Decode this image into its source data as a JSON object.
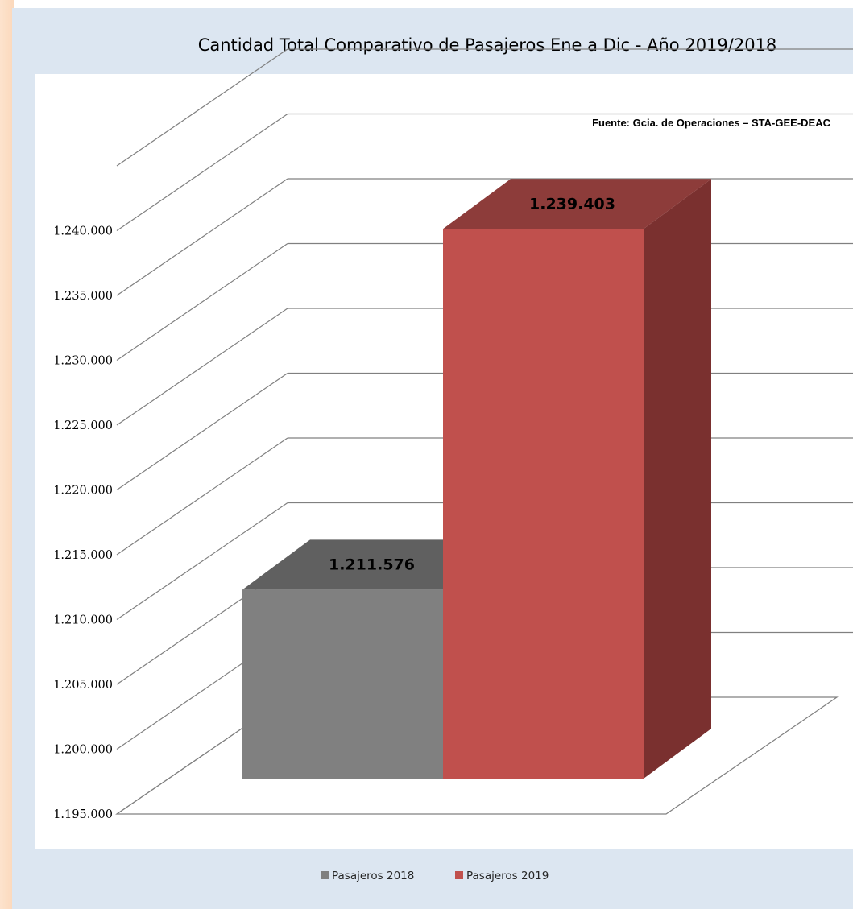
{
  "chart_data": {
    "type": "bar",
    "title": "Cantidad Total Comparativo de Pasajeros Ene a Dic - Año 2019/2018",
    "source_note": "Fuente: Gcia. de Operaciones – STA-GEE-DEAC",
    "categories": [
      ""
    ],
    "series": [
      {
        "name": "Pasajeros 2018",
        "values": [
          1211576
        ],
        "value_labels": [
          "1.211.576"
        ],
        "color": "#808080"
      },
      {
        "name": "Pasajeros 2019",
        "values": [
          1239403
        ],
        "value_labels": [
          "1.239.403"
        ],
        "color": "#c0504d"
      }
    ],
    "y_ticks": [
      1195000,
      1200000,
      1205000,
      1210000,
      1215000,
      1220000,
      1225000,
      1230000,
      1235000,
      1240000
    ],
    "y_tick_labels": [
      "1.195.000",
      "1.200.000",
      "1.205.000",
      "1.210.000",
      "1.215.000",
      "1.220.000",
      "1.225.000",
      "1.230.000",
      "1.235.000",
      "1.240.000"
    ],
    "ylim": [
      1195000,
      1245000
    ],
    "grid": true,
    "style": "3d-column",
    "legend": "bottom"
  },
  "colors": {
    "background": "#dce6f1",
    "plot_area": "#ffffff",
    "grid": "#808080"
  }
}
